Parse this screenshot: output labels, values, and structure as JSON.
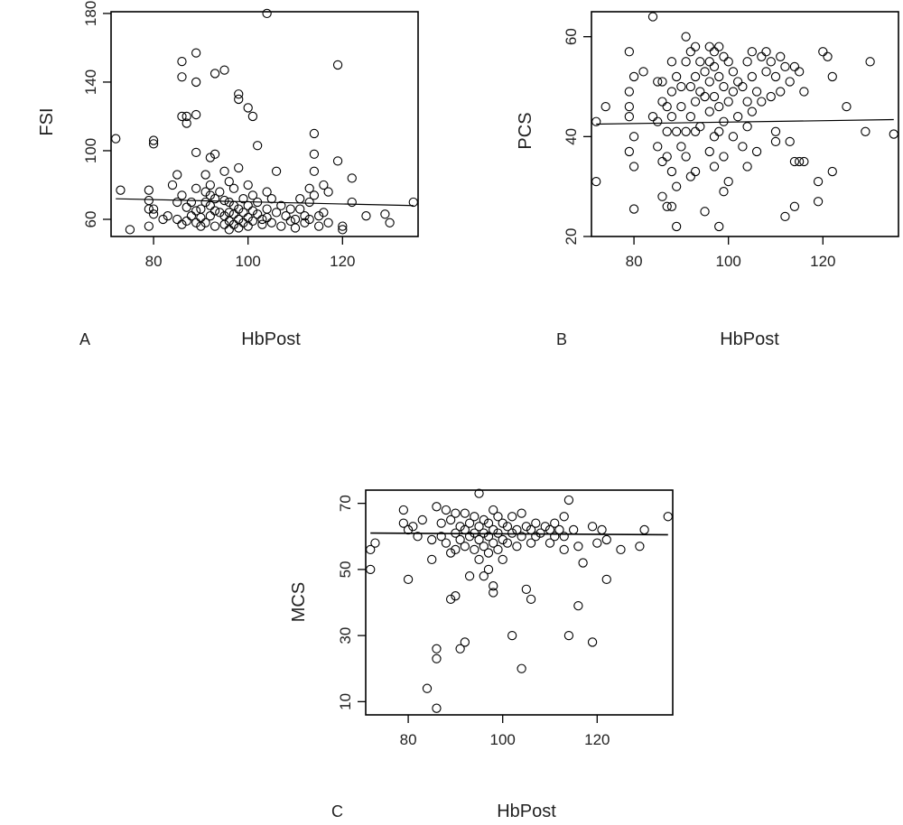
{
  "chart_data": [
    {
      "panel": "A",
      "type": "scatter",
      "xlabel": "HbPost",
      "ylabel": "FSI",
      "xticks": [
        80,
        100,
        120
      ],
      "yticks": [
        60,
        100,
        140,
        180
      ],
      "xlim": [
        71,
        136
      ],
      "ylim": [
        50,
        181
      ],
      "trend": [
        [
          72,
          72
        ],
        [
          135,
          68
        ]
      ],
      "points": [
        [
          72,
          107
        ],
        [
          73,
          77
        ],
        [
          75,
          54
        ],
        [
          79,
          77
        ],
        [
          79,
          71
        ],
        [
          79,
          66
        ],
        [
          79,
          56
        ],
        [
          80,
          104
        ],
        [
          80,
          106
        ],
        [
          80,
          66
        ],
        [
          80,
          63
        ],
        [
          82,
          60
        ],
        [
          83,
          62
        ],
        [
          84,
          80
        ],
        [
          85,
          86
        ],
        [
          85,
          70
        ],
        [
          85,
          60
        ],
        [
          86,
          152
        ],
        [
          86,
          143
        ],
        [
          86,
          120
        ],
        [
          86,
          74
        ],
        [
          86,
          57
        ],
        [
          87,
          120
        ],
        [
          87,
          116
        ],
        [
          87,
          67
        ],
        [
          87,
          59
        ],
        [
          88,
          70
        ],
        [
          88,
          62
        ],
        [
          89,
          157
        ],
        [
          89,
          140
        ],
        [
          89,
          121
        ],
        [
          89,
          99
        ],
        [
          89,
          78
        ],
        [
          89,
          65
        ],
        [
          89,
          58
        ],
        [
          90,
          66
        ],
        [
          90,
          61
        ],
        [
          90,
          56
        ],
        [
          91,
          86
        ],
        [
          91,
          76
        ],
        [
          91,
          70
        ],
        [
          91,
          58
        ],
        [
          92,
          96
        ],
        [
          92,
          80
        ],
        [
          92,
          74
        ],
        [
          92,
          68
        ],
        [
          92,
          62
        ],
        [
          93,
          145
        ],
        [
          93,
          98
        ],
        [
          93,
          72
        ],
        [
          93,
          65
        ],
        [
          93,
          56
        ],
        [
          94,
          76
        ],
        [
          94,
          64
        ],
        [
          95,
          147
        ],
        [
          95,
          88
        ],
        [
          95,
          71
        ],
        [
          95,
          62
        ],
        [
          95,
          57
        ],
        [
          96,
          82
        ],
        [
          96,
          70
        ],
        [
          96,
          64
        ],
        [
          96,
          59
        ],
        [
          96,
          54
        ],
        [
          97,
          78
        ],
        [
          97,
          68
        ],
        [
          97,
          63
        ],
        [
          97,
          57
        ],
        [
          98,
          133
        ],
        [
          98,
          130
        ],
        [
          98,
          90
        ],
        [
          98,
          66
        ],
        [
          98,
          60
        ],
        [
          98,
          55
        ],
        [
          99,
          72
        ],
        [
          99,
          64
        ],
        [
          99,
          58
        ],
        [
          100,
          125
        ],
        [
          100,
          80
        ],
        [
          100,
          68
        ],
        [
          100,
          61
        ],
        [
          100,
          56
        ],
        [
          101,
          120
        ],
        [
          101,
          74
        ],
        [
          101,
          65
        ],
        [
          101,
          59
        ],
        [
          102,
          103
        ],
        [
          102,
          70
        ],
        [
          102,
          63
        ],
        [
          103,
          60
        ],
        [
          103,
          57
        ],
        [
          104,
          180
        ],
        [
          104,
          76
        ],
        [
          104,
          66
        ],
        [
          104,
          61
        ],
        [
          105,
          72
        ],
        [
          105,
          58
        ],
        [
          106,
          88
        ],
        [
          106,
          64
        ],
        [
          107,
          68
        ],
        [
          107,
          56
        ],
        [
          108,
          62
        ],
        [
          109,
          59
        ],
        [
          109,
          66
        ],
        [
          110,
          60
        ],
        [
          110,
          55
        ],
        [
          111,
          72
        ],
        [
          111,
          66
        ],
        [
          112,
          62
        ],
        [
          112,
          58
        ],
        [
          113,
          78
        ],
        [
          113,
          70
        ],
        [
          113,
          60
        ],
        [
          114,
          110
        ],
        [
          114,
          98
        ],
        [
          114,
          88
        ],
        [
          114,
          74
        ],
        [
          115,
          62
        ],
        [
          115,
          56
        ],
        [
          116,
          80
        ],
        [
          116,
          64
        ],
        [
          117,
          76
        ],
        [
          117,
          58
        ],
        [
          119,
          150
        ],
        [
          119,
          94
        ],
        [
          120,
          54
        ],
        [
          120,
          56
        ],
        [
          122,
          84
        ],
        [
          122,
          70
        ],
        [
          125,
          62
        ],
        [
          129,
          63
        ],
        [
          130,
          58
        ],
        [
          135,
          70
        ]
      ]
    },
    {
      "panel": "B",
      "type": "scatter",
      "xlabel": "HbPost",
      "ylabel": "PCS",
      "xticks": [
        80,
        100,
        120
      ],
      "yticks": [
        20,
        40,
        60
      ],
      "xlim": [
        71,
        136
      ],
      "ylim": [
        20,
        65
      ],
      "trend": [
        [
          72,
          42.5
        ],
        [
          135,
          43.4
        ]
      ],
      "points": [
        [
          72,
          31
        ],
        [
          72,
          43
        ],
        [
          74,
          46
        ],
        [
          79,
          57
        ],
        [
          79,
          49
        ],
        [
          79,
          46
        ],
        [
          79,
          44
        ],
        [
          79,
          37
        ],
        [
          80,
          52
        ],
        [
          80,
          40
        ],
        [
          80,
          34
        ],
        [
          80,
          25.5
        ],
        [
          82,
          53
        ],
        [
          84,
          64
        ],
        [
          84,
          44
        ],
        [
          85,
          51
        ],
        [
          85,
          43
        ],
        [
          85,
          38
        ],
        [
          86,
          51
        ],
        [
          86,
          47
        ],
        [
          86,
          35
        ],
        [
          86,
          28
        ],
        [
          87,
          46
        ],
        [
          87,
          41
        ],
        [
          87,
          36
        ],
        [
          87,
          26
        ],
        [
          88,
          55
        ],
        [
          88,
          49
        ],
        [
          88,
          44
        ],
        [
          88,
          33
        ],
        [
          88,
          26
        ],
        [
          89,
          52
        ],
        [
          89,
          41
        ],
        [
          89,
          30
        ],
        [
          89,
          22
        ],
        [
          90,
          50
        ],
        [
          90,
          46
        ],
        [
          90,
          38
        ],
        [
          91,
          60
        ],
        [
          91,
          55
        ],
        [
          91,
          41
        ],
        [
          91,
          36
        ],
        [
          92,
          57
        ],
        [
          92,
          50
        ],
        [
          92,
          44
        ],
        [
          92,
          32
        ],
        [
          93,
          58
        ],
        [
          93,
          52
        ],
        [
          93,
          47
        ],
        [
          93,
          41
        ],
        [
          93,
          33
        ],
        [
          94,
          55
        ],
        [
          94,
          49
        ],
        [
          94,
          42
        ],
        [
          95,
          53
        ],
        [
          95,
          48
        ],
        [
          95,
          25
        ],
        [
          96,
          58
        ],
        [
          96,
          55
        ],
        [
          96,
          51
        ],
        [
          96,
          45
        ],
        [
          96,
          37
        ],
        [
          97,
          57
        ],
        [
          97,
          54
        ],
        [
          97,
          48
        ],
        [
          97,
          40
        ],
        [
          97,
          34
        ],
        [
          98,
          58
        ],
        [
          98,
          52
        ],
        [
          98,
          46
        ],
        [
          98,
          41
        ],
        [
          98,
          22
        ],
        [
          99,
          56
        ],
        [
          99,
          50
        ],
        [
          99,
          43
        ],
        [
          99,
          36
        ],
        [
          99,
          29
        ],
        [
          100,
          55
        ],
        [
          100,
          47
        ],
        [
          100,
          31
        ],
        [
          101,
          53
        ],
        [
          101,
          49
        ],
        [
          101,
          40
        ],
        [
          102,
          51
        ],
        [
          102,
          44
        ],
        [
          103,
          50
        ],
        [
          103,
          38
        ],
        [
          104,
          55
        ],
        [
          104,
          47
        ],
        [
          104,
          42
        ],
        [
          104,
          34
        ],
        [
          105,
          57
        ],
        [
          105,
          52
        ],
        [
          105,
          45
        ],
        [
          106,
          49
        ],
        [
          106,
          37
        ],
        [
          107,
          56
        ],
        [
          107,
          47
        ],
        [
          108,
          57
        ],
        [
          108,
          53
        ],
        [
          109,
          55
        ],
        [
          109,
          48
        ],
        [
          110,
          52
        ],
        [
          110,
          41
        ],
        [
          110,
          39
        ],
        [
          111,
          56
        ],
        [
          111,
          49
        ],
        [
          112,
          54
        ],
        [
          112,
          24
        ],
        [
          113,
          51
        ],
        [
          113,
          39
        ],
        [
          114,
          54
        ],
        [
          114,
          35
        ],
        [
          114,
          26
        ],
        [
          115,
          53
        ],
        [
          115,
          35
        ],
        [
          116,
          49
        ],
        [
          116,
          35
        ],
        [
          119,
          31
        ],
        [
          119,
          27
        ],
        [
          120,
          57
        ],
        [
          121,
          56
        ],
        [
          122,
          52
        ],
        [
          122,
          33
        ],
        [
          125,
          46
        ],
        [
          129,
          41
        ],
        [
          130,
          55
        ],
        [
          135,
          40.5
        ]
      ]
    },
    {
      "panel": "C",
      "type": "scatter",
      "xlabel": "HbPost",
      "ylabel": "MCS",
      "xticks": [
        80,
        100,
        120
      ],
      "yticks": [
        10,
        30,
        50,
        70
      ],
      "xlim": [
        71,
        136
      ],
      "ylim": [
        6,
        74
      ],
      "trend": [
        [
          72,
          61
        ],
        [
          135,
          60.5
        ]
      ],
      "points": [
        [
          72,
          56
        ],
        [
          72,
          50
        ],
        [
          73,
          58
        ],
        [
          79,
          68
        ],
        [
          79,
          64
        ],
        [
          80,
          62
        ],
        [
          80,
          47
        ],
        [
          81,
          63
        ],
        [
          82,
          60
        ],
        [
          83,
          65
        ],
        [
          84,
          14
        ],
        [
          85,
          59
        ],
        [
          85,
          53
        ],
        [
          86,
          69
        ],
        [
          86,
          26
        ],
        [
          86,
          23
        ],
        [
          86,
          8
        ],
        [
          87,
          64
        ],
        [
          87,
          60
        ],
        [
          88,
          68
        ],
        [
          88,
          58
        ],
        [
          89,
          65
        ],
        [
          89,
          55
        ],
        [
          89,
          41
        ],
        [
          90,
          67
        ],
        [
          90,
          61
        ],
        [
          90,
          56
        ],
        [
          90,
          42
        ],
        [
          91,
          63
        ],
        [
          91,
          59
        ],
        [
          91,
          26
        ],
        [
          92,
          67
        ],
        [
          92,
          62
        ],
        [
          92,
          57
        ],
        [
          92,
          28
        ],
        [
          93,
          64
        ],
        [
          93,
          60
        ],
        [
          93,
          48
        ],
        [
          94,
          66
        ],
        [
          94,
          61
        ],
        [
          94,
          56
        ],
        [
          95,
          73
        ],
        [
          95,
          63
        ],
        [
          95,
          59
        ],
        [
          95,
          53
        ],
        [
          96,
          65
        ],
        [
          96,
          61
        ],
        [
          96,
          57
        ],
        [
          96,
          48
        ],
        [
          97,
          64
        ],
        [
          97,
          60
        ],
        [
          97,
          55
        ],
        [
          97,
          50
        ],
        [
          98,
          68
        ],
        [
          98,
          62
        ],
        [
          98,
          58
        ],
        [
          98,
          45
        ],
        [
          98,
          43
        ],
        [
          99,
          66
        ],
        [
          99,
          61
        ],
        [
          99,
          56
        ],
        [
          100,
          64
        ],
        [
          100,
          59
        ],
        [
          100,
          53
        ],
        [
          101,
          63
        ],
        [
          101,
          58
        ],
        [
          102,
          66
        ],
        [
          102,
          61
        ],
        [
          102,
          30
        ],
        [
          103,
          62
        ],
        [
          103,
          57
        ],
        [
          104,
          67
        ],
        [
          104,
          60
        ],
        [
          104,
          20
        ],
        [
          105,
          63
        ],
        [
          105,
          44
        ],
        [
          106,
          62
        ],
        [
          106,
          58
        ],
        [
          106,
          41
        ],
        [
          107,
          64
        ],
        [
          107,
          60
        ],
        [
          108,
          61
        ],
        [
          109,
          63
        ],
        [
          110,
          62
        ],
        [
          110,
          58
        ],
        [
          111,
          64
        ],
        [
          111,
          60
        ],
        [
          112,
          62
        ],
        [
          113,
          66
        ],
        [
          113,
          60
        ],
        [
          113,
          56
        ],
        [
          114,
          71
        ],
        [
          114,
          30
        ],
        [
          115,
          62
        ],
        [
          116,
          57
        ],
        [
          116,
          39
        ],
        [
          117,
          52
        ],
        [
          119,
          63
        ],
        [
          119,
          28
        ],
        [
          120,
          58
        ],
        [
          121,
          62
        ],
        [
          122,
          59
        ],
        [
          122,
          47
        ],
        [
          125,
          56
        ],
        [
          129,
          57
        ],
        [
          130,
          62
        ],
        [
          135,
          66
        ]
      ]
    }
  ]
}
